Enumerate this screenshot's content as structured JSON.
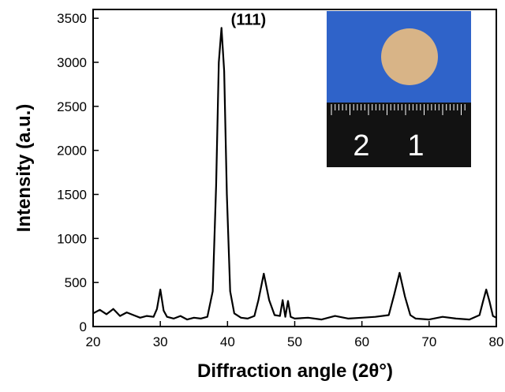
{
  "chart_data": {
    "type": "line",
    "xlabel": "Diffraction angle (2θ°)",
    "ylabel": "Intensity (a.u.)",
    "xlim": [
      20,
      80
    ],
    "ylim": [
      0,
      3600
    ],
    "x_ticks": [
      20,
      30,
      40,
      50,
      60,
      70,
      80
    ],
    "y_ticks": [
      0,
      500,
      1000,
      1500,
      2000,
      2500,
      3000,
      3500
    ],
    "grid": false,
    "line_color": "#000000",
    "annotations": [
      {
        "text": "(111)",
        "x": 39.1,
        "y": 3390
      }
    ],
    "peaks": [
      {
        "x": 30.0,
        "y": 420
      },
      {
        "x": 39.1,
        "y": 3390
      },
      {
        "x": 45.4,
        "y": 600
      },
      {
        "x": 48.2,
        "y": 300
      },
      {
        "x": 49.0,
        "y": 290
      },
      {
        "x": 65.6,
        "y": 610
      },
      {
        "x": 78.5,
        "y": 420
      }
    ],
    "series": [
      {
        "x": [
          20,
          21,
          22,
          23,
          24,
          25,
          26,
          27,
          28,
          29,
          29.5,
          30,
          30.5,
          31,
          32,
          33,
          34,
          35,
          36,
          37,
          37.8,
          38.3,
          38.7,
          39.1,
          39.5,
          39.9,
          40.4,
          41,
          42,
          43,
          44,
          44.6,
          45.4,
          46.2,
          47,
          47.8,
          48.2,
          48.6,
          49.0,
          49.4,
          50,
          52,
          54,
          56,
          58,
          60,
          62,
          64,
          64.8,
          65.6,
          66.4,
          67.2,
          68,
          70,
          72,
          74,
          76,
          77.5,
          78,
          78.5,
          79,
          79.5,
          80
        ],
        "y": [
          150,
          190,
          140,
          200,
          120,
          160,
          130,
          100,
          120,
          110,
          200,
          420,
          180,
          110,
          90,
          120,
          80,
          100,
          90,
          110,
          400,
          1600,
          3000,
          3390,
          2900,
          1500,
          400,
          150,
          100,
          90,
          120,
          300,
          600,
          300,
          130,
          120,
          300,
          110,
          290,
          110,
          90,
          100,
          80,
          120,
          90,
          100,
          110,
          130,
          360,
          610,
          340,
          130,
          90,
          80,
          110,
          90,
          80,
          130,
          280,
          420,
          280,
          120,
          100
        ]
      }
    ]
  },
  "inset": {
    "ruler_labels": [
      "2",
      "1"
    ],
    "photo_bg_color": "#2f63c9",
    "ruler_color": "#121212",
    "disc_color": "#d8b487"
  }
}
